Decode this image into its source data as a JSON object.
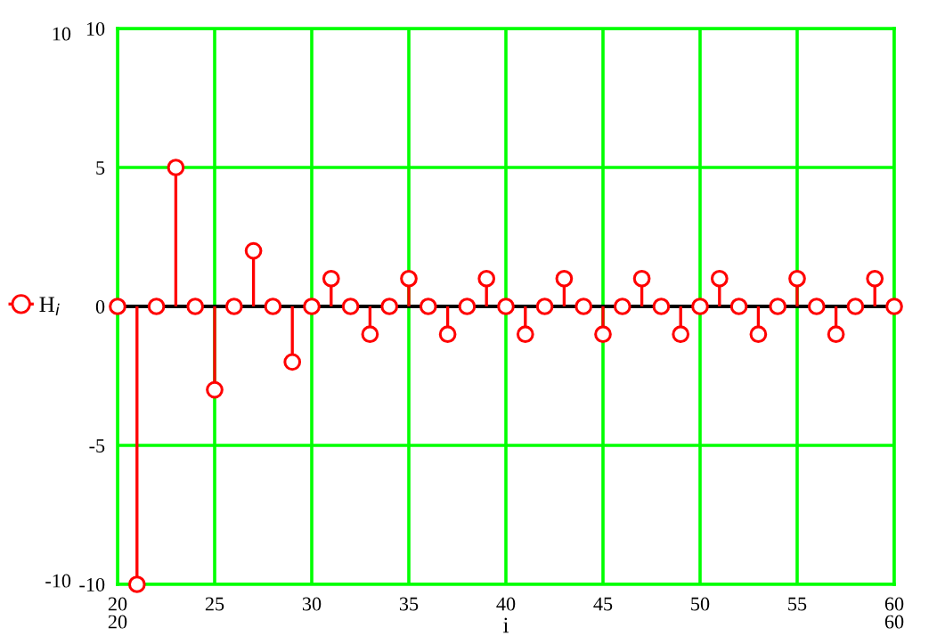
{
  "chart_data": {
    "type": "lollipop",
    "x": [
      20,
      21,
      22,
      23,
      24,
      25,
      26,
      27,
      28,
      29,
      30,
      31,
      32,
      33,
      34,
      35,
      36,
      37,
      38,
      39,
      40,
      41,
      42,
      43,
      44,
      45,
      46,
      47,
      48,
      49,
      50,
      51,
      52,
      53,
      54,
      55,
      56,
      57,
      58,
      59,
      60
    ],
    "series": [
      {
        "name": "H$_{i}$",
        "color": "#ff0000",
        "values": [
          0,
          -10,
          0,
          5,
          0,
          -3,
          0,
          2,
          0,
          -2,
          0,
          1,
          0,
          -1,
          0,
          1,
          0,
          -1,
          0,
          1,
          0,
          -1,
          0,
          1,
          0,
          -1,
          0,
          1,
          0,
          -1,
          0,
          1,
          0,
          -1,
          0,
          1,
          0,
          -1,
          0,
          1,
          0
        ]
      }
    ],
    "xlabel": "i",
    "xlim": [
      20,
      60
    ],
    "xticks": [
      20,
      25,
      30,
      35,
      40,
      45,
      50,
      55,
      60
    ],
    "ylim": [
      -10,
      10
    ],
    "yticks": [
      -10,
      -5,
      0,
      5,
      10
    ],
    "annotations": [
      "10",
      "-10",
      "20",
      "60"
    ],
    "marker": "circle",
    "grid": true,
    "legend": "left"
  }
}
